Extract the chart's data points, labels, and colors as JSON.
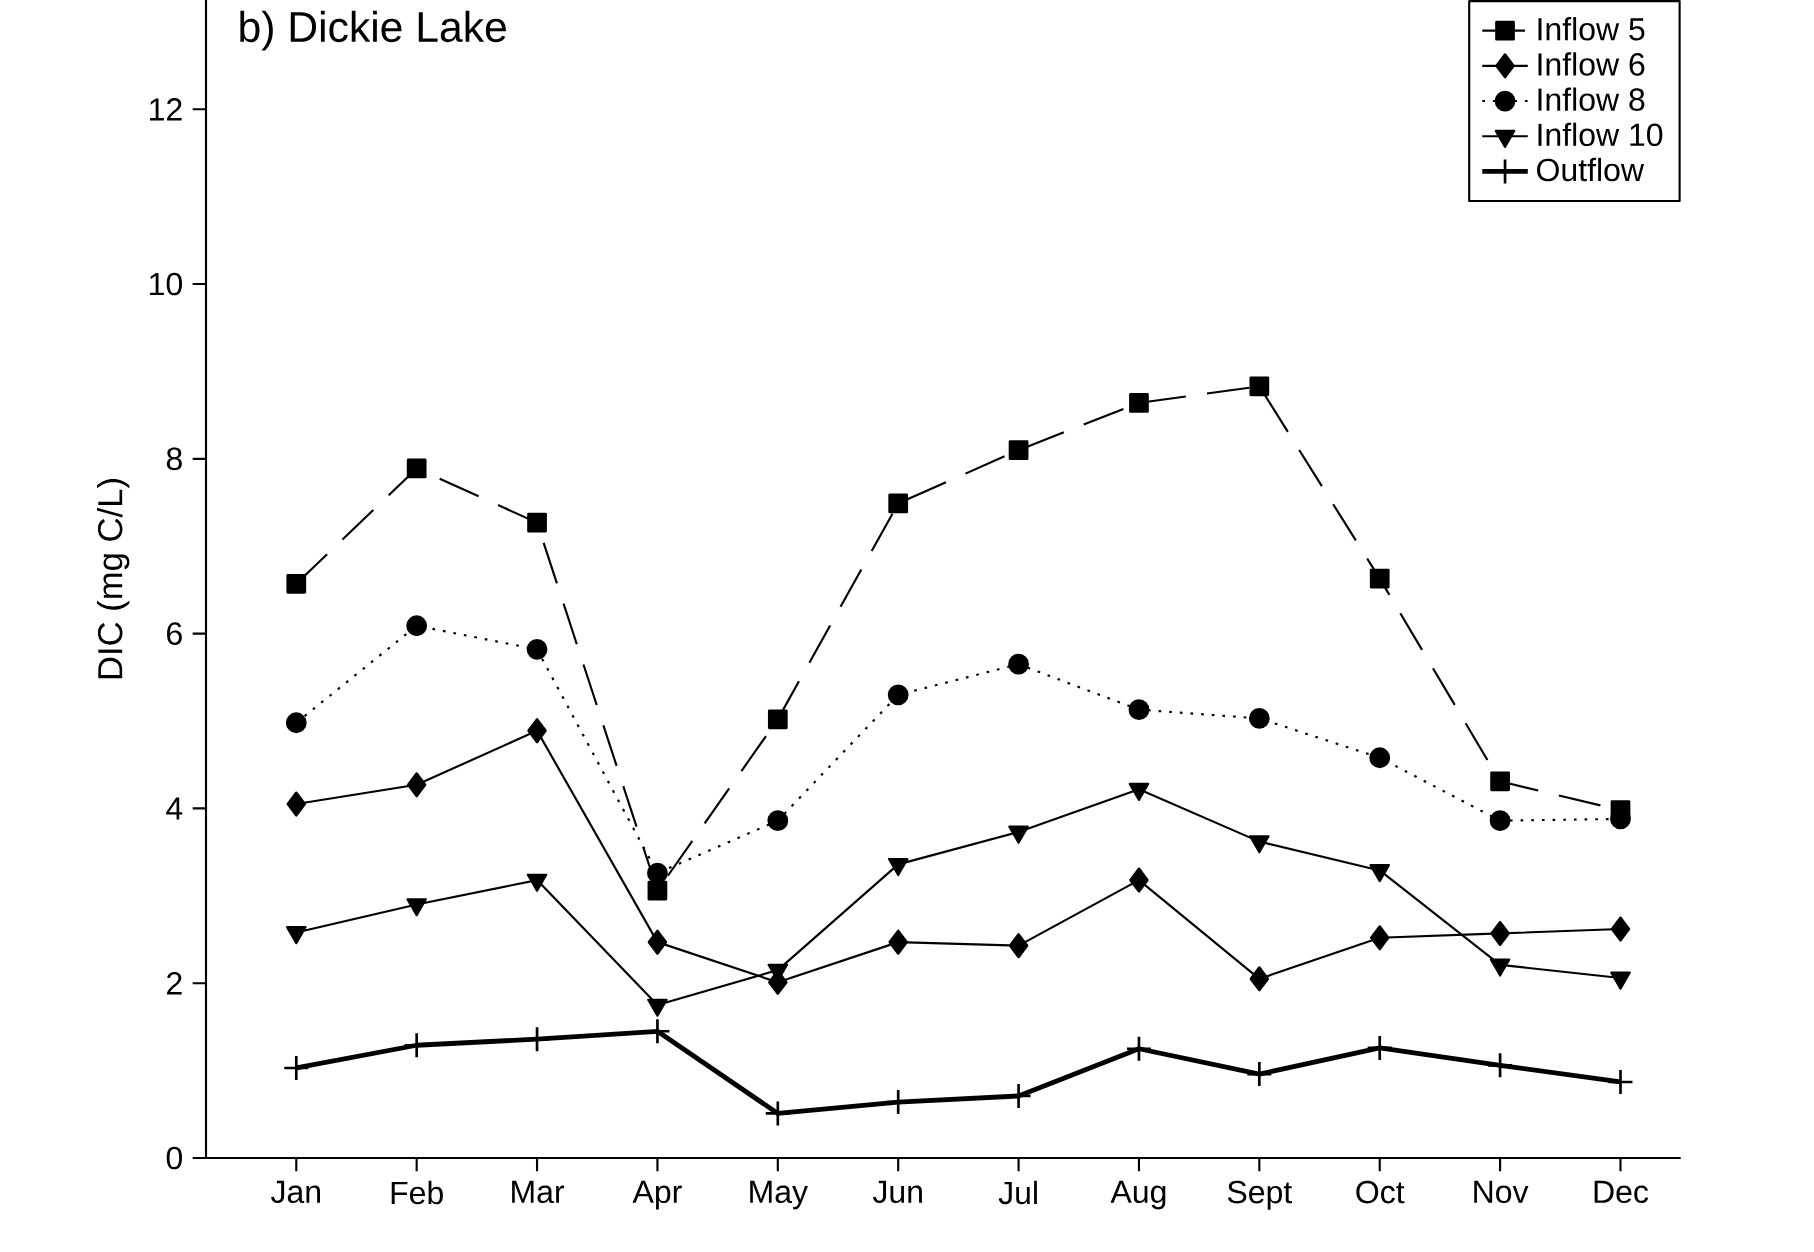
{
  "chart_data": {
    "type": "line",
    "title": "b) Dickie Lake",
    "ylabel": "DIC (mg C/L)",
    "categories": [
      "Jan",
      "Feb",
      "Mar",
      "Apr",
      "May",
      "Jun",
      "Jul",
      "Aug",
      "Sept",
      "Oct",
      "Nov",
      "Dec"
    ],
    "ylim": [
      0,
      13.25
    ],
    "yticks": [
      0,
      2,
      4,
      6,
      8,
      10,
      12
    ],
    "legend": "top right",
    "grid": false,
    "series": [
      {
        "name": "Inflow 5",
        "color": "#000000",
        "marker": "square",
        "line_style": "dashed",
        "values": [
          6.57,
          7.89,
          7.27,
          3.06,
          5.02,
          7.49,
          8.1,
          8.64,
          8.83,
          6.63,
          4.31,
          3.98
        ]
      },
      {
        "name": "Inflow 6",
        "color": "#000000",
        "marker": "diamond",
        "line_style": "solid",
        "values": [
          4.05,
          4.27,
          4.89,
          2.47,
          2.01,
          2.47,
          2.43,
          3.18,
          2.05,
          2.52,
          2.57,
          2.62
        ]
      },
      {
        "name": "Inflow 8",
        "color": "#000000",
        "marker": "circle",
        "line_style": "dotted",
        "values": [
          4.98,
          6.09,
          5.82,
          3.26,
          3.86,
          5.3,
          5.65,
          5.13,
          5.03,
          4.58,
          3.86,
          3.88
        ]
      },
      {
        "name": "Inflow 10",
        "color": "#000000",
        "marker": "triangle",
        "line_style": "solid",
        "values": [
          2.58,
          2.9,
          3.18,
          1.75,
          2.15,
          3.36,
          3.73,
          4.22,
          3.62,
          3.29,
          2.21,
          2.06
        ]
      },
      {
        "name": "Outflow",
        "color": "#000000",
        "marker": "cross",
        "line_style": "solid",
        "values": [
          1.03,
          1.29,
          1.36,
          1.45,
          0.51,
          0.64,
          0.71,
          1.25,
          0.96,
          1.26,
          1.06,
          0.87
        ]
      }
    ]
  }
}
